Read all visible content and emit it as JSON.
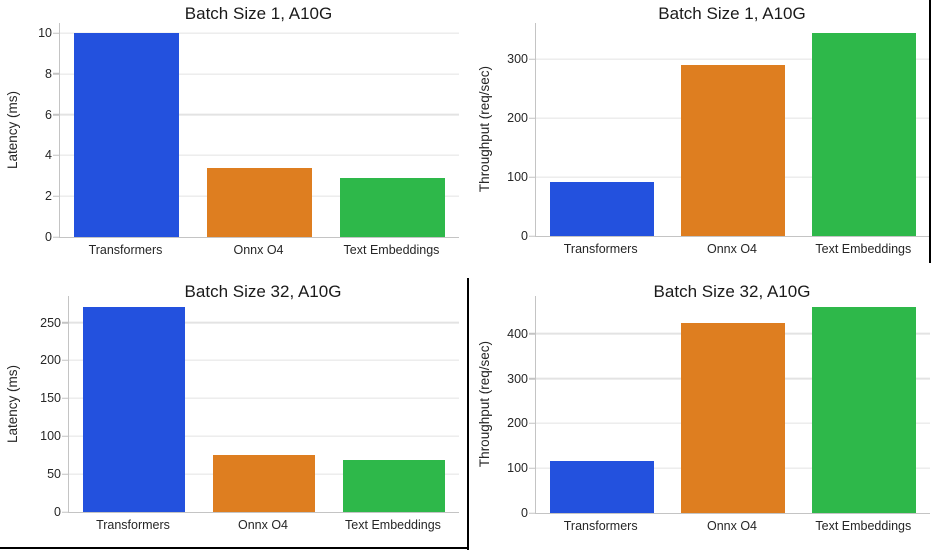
{
  "palette": {
    "bar_colors": [
      "#2351DE",
      "#DE7E20",
      "#2EB84A"
    ],
    "grid_color": "#E3E3E3",
    "spine_color": "#C4C4C4",
    "text_color": "#262626"
  },
  "chart_data": [
    {
      "type": "bar",
      "title": "Batch Size 1, A10G",
      "ylabel": "Latency (ms)",
      "xlabel": "",
      "categories": [
        "Transformers",
        "Onnx O4",
        "Text Embeddings"
      ],
      "values": [
        10.0,
        3.4,
        2.9
      ],
      "yticks": [
        0,
        2,
        4,
        6,
        8,
        10
      ],
      "ylim": [
        0,
        10.5
      ],
      "grid": true,
      "legend": false
    },
    {
      "type": "bar",
      "title": "Batch Size 1, A10G",
      "ylabel": "Throughput (req/sec)",
      "xlabel": "",
      "categories": [
        "Transformers",
        "Onnx O4",
        "Text Embeddings"
      ],
      "values": [
        92,
        290,
        345
      ],
      "yticks": [
        0,
        100,
        200,
        300
      ],
      "ylim": [
        0,
        362
      ],
      "grid": true,
      "legend": false
    },
    {
      "type": "bar",
      "title": "Batch Size 32, A10G",
      "ylabel": "Latency (ms)",
      "xlabel": "",
      "categories": [
        "Transformers",
        "Onnx O4",
        "Text Embeddings"
      ],
      "values": [
        271,
        75,
        68
      ],
      "yticks": [
        0,
        50,
        100,
        150,
        200,
        250
      ],
      "ylim": [
        0,
        285
      ],
      "grid": true,
      "legend": false
    },
    {
      "type": "bar",
      "title": "Batch Size 32, A10G",
      "ylabel": "Throughput (req/sec)",
      "xlabel": "",
      "categories": [
        "Transformers",
        "Onnx O4",
        "Text Embeddings"
      ],
      "values": [
        117,
        424,
        459
      ],
      "yticks": [
        0,
        100,
        200,
        300,
        400
      ],
      "ylim": [
        0,
        484
      ],
      "grid": true,
      "legend": false
    }
  ]
}
